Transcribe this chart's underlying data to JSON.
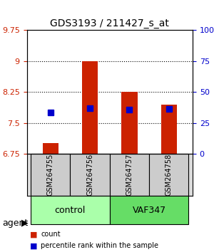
{
  "title": "GDS3193 / 211427_s_at",
  "samples": [
    "GSM264755",
    "GSM264756",
    "GSM264757",
    "GSM264758"
  ],
  "groups": [
    "control",
    "control",
    "VAF347",
    "VAF347"
  ],
  "group_labels": [
    "control",
    "VAF347"
  ],
  "group_colors": [
    "#aaffaa",
    "#55dd55"
  ],
  "bar_bottom": 6.75,
  "count_values": [
    7.0,
    9.0,
    8.25,
    7.95
  ],
  "percentile_values": [
    7.75,
    7.85,
    7.82,
    7.83
  ],
  "ylim_left": [
    6.75,
    9.75
  ],
  "ylim_right": [
    0,
    100
  ],
  "yticks_left": [
    6.75,
    7.5,
    8.25,
    9.0,
    9.75
  ],
  "yticks_right": [
    0,
    25,
    50,
    75,
    100
  ],
  "ytick_labels_left": [
    "6.75",
    "7.5",
    "8.25",
    "9",
    "9.75"
  ],
  "ytick_labels_right": [
    "0",
    "25",
    "50",
    "75",
    "100%"
  ],
  "hline_positions": [
    7.5,
    8.25,
    9.0
  ],
  "bar_color": "#cc2200",
  "percentile_color": "#0000cc",
  "bar_width": 0.4,
  "percentile_marker_size": 6,
  "count_label": "count",
  "percentile_label": "percentile rank within the sample",
  "agent_label": "agent",
  "background_color": "#ffffff",
  "plot_bg_color": "#ffffff",
  "tick_label_color_left": "#cc2200",
  "tick_label_color_right": "#0000cc"
}
